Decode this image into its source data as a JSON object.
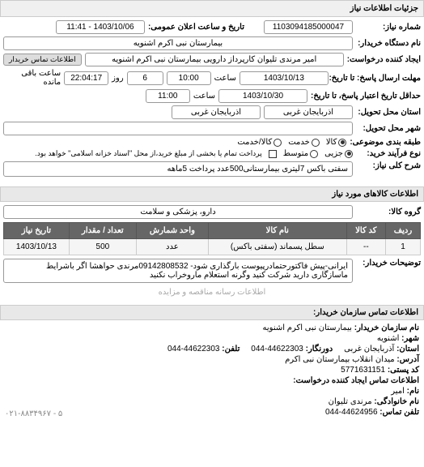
{
  "header": {
    "title": "جزئیات اطلاعات نیاز"
  },
  "form": {
    "request_number_label": "شماره نیاز:",
    "request_number": "1103094185000047",
    "announce_label": "تاریخ و ساعت اعلان عمومی:",
    "announce_value": "1403/10/06 - 11:41",
    "buyer_device_label": "نام دستگاه خریدار:",
    "buyer_device": "بیمارستان نبی اکرم اشنویه",
    "creator_label": "ایجاد کننده درخواست:",
    "creator": "امیر مرندی تلیوان کارپرداز دارویی بیمارستان نبی اکرم اشنویه",
    "contact_btn": "اطلاعات تماس خریدار",
    "response_deadline_label": "مهلت ارسال پاسخ: تا تاریخ:",
    "response_date": "1403/10/13",
    "time_label1": "ساعت",
    "response_time": "10:00",
    "days": "6",
    "day_label": "روز",
    "remaining_time": "22:04:17",
    "remaining_label": "ساعت باقی مانده",
    "validity_label": "حداقل تاریخ اعتبار پاسخ، تا تاریخ:",
    "validity_date": "1403/10/30",
    "time_label2": "ساعت",
    "validity_time": "11:00",
    "delivery_state_label": "استان محل تحویل:",
    "delivery_state": "آذربایجان غربی",
    "delivery_state2": "آذربایجان غربی",
    "delivery_city_label": "شهر محل تحویل:",
    "classification_label": "طبقه بندی موضوعی:",
    "classification_options": {
      "goods": "کالا",
      "service": "خدمت",
      "goods_service": "کالا/خدمت"
    },
    "selected_classification": "goods",
    "purchase_type_label": "نوع فرآیند خرید:",
    "purchase_type_options": {
      "small": "جزیی",
      "medium": "متوسط"
    },
    "selected_purchase_type": "small",
    "purchase_note": "پرداخت تمام یا بخشی از مبلغ خرید،از محل \"اسناد خزانه اسلامی\" خواهد بود.",
    "general_desc_label": "شرح کلی نیاز:",
    "general_desc": "سفتی باکس 7لیتری بیمارستانی500عدد پرداخت 5ماهه"
  },
  "goods_section": {
    "title": "اطلاعات کالاهای مورد نیاز",
    "group_label": "گروه کالا:",
    "group_value": "دارو، پزشکی و سلامت"
  },
  "table": {
    "headers": {
      "row": "ردیف",
      "code": "کد کالا",
      "name": "نام کالا",
      "unit": "واحد شمارش",
      "quantity": "تعداد / مقدار",
      "date": "تاریخ نیاز"
    },
    "rows": [
      {
        "row": "1",
        "code": "--",
        "name": "سطل پسماند (سفتی باکس)",
        "unit": "عدد",
        "quantity": "500",
        "date": "1403/10/13"
      }
    ]
  },
  "buyer_notes": {
    "label": "توضیحات خریدار:",
    "text": "ایرانی-پیش فاکتورحتمادرپیوست بارگذاری شود- 09142808532مرندی حواهشا اگر باشرایط ماسازگاری دارید شرکت کنید وگرنه استعلام ماروخراب نکنید"
  },
  "footer_note": "اطلاعات رسانه مناقصه و مزایده",
  "contact": {
    "title": "اطلاعات تماس سازمان خریدار:",
    "org_name_label": "نام سازمان خریدار:",
    "org_name": "بیمارستان نبی اکرم اشنویه",
    "city_label": "شهر:",
    "city": "اشنویه",
    "state_label": "استان:",
    "state": "آذربایجان غربی",
    "fax_label": "دورنگار:",
    "fax": "44622303-044",
    "phone_label": "تلفن:",
    "phone": "44622303-044",
    "address_label": "آدرس:",
    "address": "میدان انقلاب بیمارستان نبی اکرم",
    "postal_label": "کد پستی:",
    "postal": "5771631151",
    "creator_contact_label": "اطلاعات تماس ایجاد کننده درخواست:",
    "name_label": "نام:",
    "name": "امیر",
    "family_label": "نام خانوادگی:",
    "family": "مرندی تلیوان",
    "contact_phone_label": "تلفن تماس:",
    "contact_phone": "44624956-044",
    "left_phone": "۰۲۱-۸۸۳۴۹۶۷ - ۵"
  },
  "colors": {
    "header_bg": "#f0f0f0",
    "table_header_bg": "#666666",
    "table_header_fg": "#ffffff",
    "border": "#999999",
    "row_bg": "#f5f5f5"
  }
}
